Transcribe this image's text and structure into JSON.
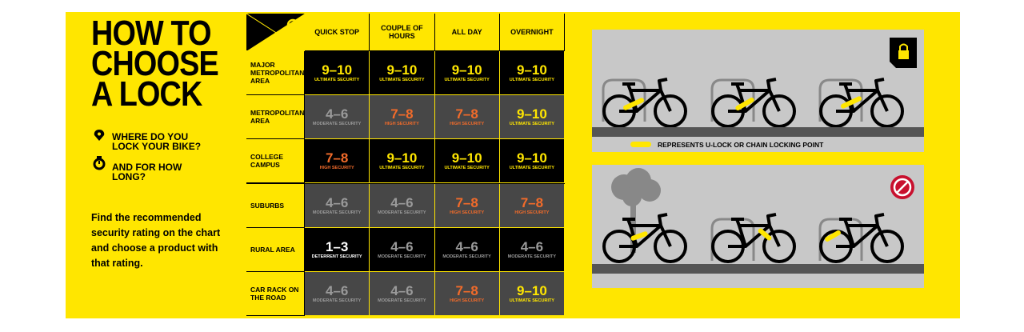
{
  "header": {
    "title_lines": [
      "HOW TO",
      "CHOOSE",
      "A LOCK"
    ],
    "question_where": "WHERE DO YOU LOCK YOUR BIKE?",
    "question_how_long": "AND FOR HOW LONG?",
    "instructions": "Find the recommended security rating on the chart and choose a product with that rating."
  },
  "table": {
    "columns": [
      "QUICK STOP",
      "COUPLE OF HOURS",
      "ALL DAY",
      "OVERNIGHT"
    ],
    "rows": [
      {
        "label": "MAJOR METROPOLITAN AREA",
        "background": "#000000",
        "cells": [
          {
            "rating": "9–10",
            "security": "ULTIMATE SECURITY",
            "color": "#ffe600"
          },
          {
            "rating": "9–10",
            "security": "ULTIMATE SECURITY",
            "color": "#ffe600"
          },
          {
            "rating": "9–10",
            "security": "ULTIMATE SECURITY",
            "color": "#ffe600"
          },
          {
            "rating": "9–10",
            "security": "ULTIMATE SECURITY",
            "color": "#ffe600"
          }
        ]
      },
      {
        "label": "METROPOLITAN AREA",
        "background": "#474747",
        "cells": [
          {
            "rating": "4–6",
            "security": "MODERATE SECURITY",
            "color": "#9a9a9a"
          },
          {
            "rating": "7–8",
            "security": "HIGH SECURITY",
            "color": "#f26b2a"
          },
          {
            "rating": "7–8",
            "security": "HIGH SECURITY",
            "color": "#f26b2a"
          },
          {
            "rating": "9–10",
            "security": "ULTIMATE SECURITY",
            "color": "#ffe600"
          }
        ]
      },
      {
        "label": "COLLEGE CAMPUS",
        "background": "#000000",
        "cells": [
          {
            "rating": "7–8",
            "security": "HIGH SECURITY",
            "color": "#f26b2a"
          },
          {
            "rating": "9–10",
            "security": "ULTIMATE SECURITY",
            "color": "#ffe600"
          },
          {
            "rating": "9–10",
            "security": "ULTIMATE SECURITY",
            "color": "#ffe600"
          },
          {
            "rating": "9–10",
            "security": "ULTIMATE SECURITY",
            "color": "#ffe600"
          }
        ]
      },
      {
        "label": "SUBURBS",
        "background": "#474747",
        "cells": [
          {
            "rating": "4–6",
            "security": "MODERATE SECURITY",
            "color": "#9a9a9a"
          },
          {
            "rating": "4–6",
            "security": "MODERATE SECURITY",
            "color": "#9a9a9a"
          },
          {
            "rating": "7–8",
            "security": "HIGH SECURITY",
            "color": "#f26b2a"
          },
          {
            "rating": "7–8",
            "security": "HIGH SECURITY",
            "color": "#f26b2a"
          }
        ]
      },
      {
        "label": "RURAL AREA",
        "background": "#000000",
        "cells": [
          {
            "rating": "1–3",
            "security": "DETERRENT SECURITY",
            "color": "#ffffff"
          },
          {
            "rating": "4–6",
            "security": "MODERATE SECURITY",
            "color": "#9a9a9a"
          },
          {
            "rating": "4–6",
            "security": "MODERATE SECURITY",
            "color": "#9a9a9a"
          },
          {
            "rating": "4–6",
            "security": "MODERATE SECURITY",
            "color": "#9a9a9a"
          }
        ]
      },
      {
        "label": "CAR RACK ON THE ROAD",
        "background": "#474747",
        "cells": [
          {
            "rating": "4–6",
            "security": "MODERATE SECURITY",
            "color": "#9a9a9a"
          },
          {
            "rating": "4–6",
            "security": "MODERATE SECURITY",
            "color": "#9a9a9a"
          },
          {
            "rating": "7–8",
            "security": "HIGH SECURITY",
            "color": "#f26b2a"
          },
          {
            "rating": "9–10",
            "security": "ULTIMATE SECURITY",
            "color": "#ffe600"
          }
        ]
      }
    ]
  },
  "legend": {
    "lock_point": "REPRESENTS U-LOCK OR CHAIN LOCKING POINT"
  }
}
